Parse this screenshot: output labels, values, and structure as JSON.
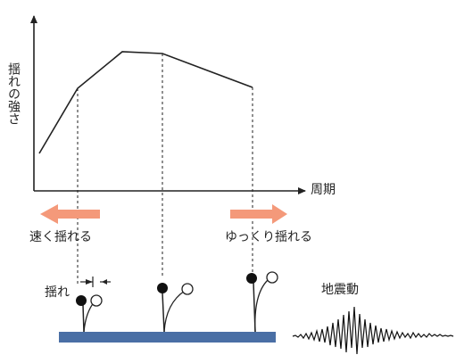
{
  "labels": {
    "y_axis": "揺れの強さ",
    "x_axis": "周期",
    "fast_shaking": "速く揺れる",
    "slow_shaking": "ゆっくり揺れる",
    "sway": "揺れ",
    "ground_motion": "地震動"
  },
  "colors": {
    "arrow": "#f4997a",
    "ground": "#4a6fa5",
    "line": "#222222"
  }
}
